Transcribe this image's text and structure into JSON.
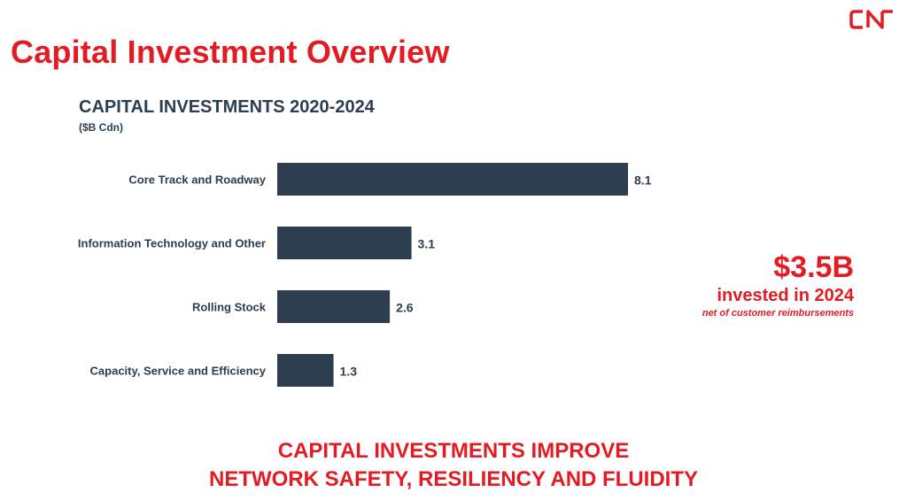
{
  "brand": {
    "logo_text": "CN",
    "accent_color": "#e31b23",
    "bar_color": "#2c3e50"
  },
  "header": {
    "title": "Capital Investment Overview"
  },
  "chart_data": {
    "type": "bar",
    "orientation": "horizontal",
    "title": "CAPITAL INVESTMENTS 2020-2024",
    "subtitle": "($B Cdn)",
    "categories": [
      "Core Track and Roadway",
      "Information Technology and Other",
      "Rolling Stock",
      "Capacity, Service and Efficiency"
    ],
    "values": [
      8.1,
      3.1,
      2.6,
      1.3
    ],
    "value_labels": [
      "8.1",
      "3.1",
      "2.6",
      "1.3"
    ],
    "xlim": [
      0,
      8.1
    ],
    "grid": false,
    "legend": "none"
  },
  "callout": {
    "amount": "$3.5B",
    "text": "invested in 2024",
    "note": "net of customer reimbursements"
  },
  "footer": {
    "line1": "CAPITAL INVESTMENTS IMPROVE",
    "line2": "NETWORK SAFETY, RESILIENCY AND FLUIDITY"
  }
}
